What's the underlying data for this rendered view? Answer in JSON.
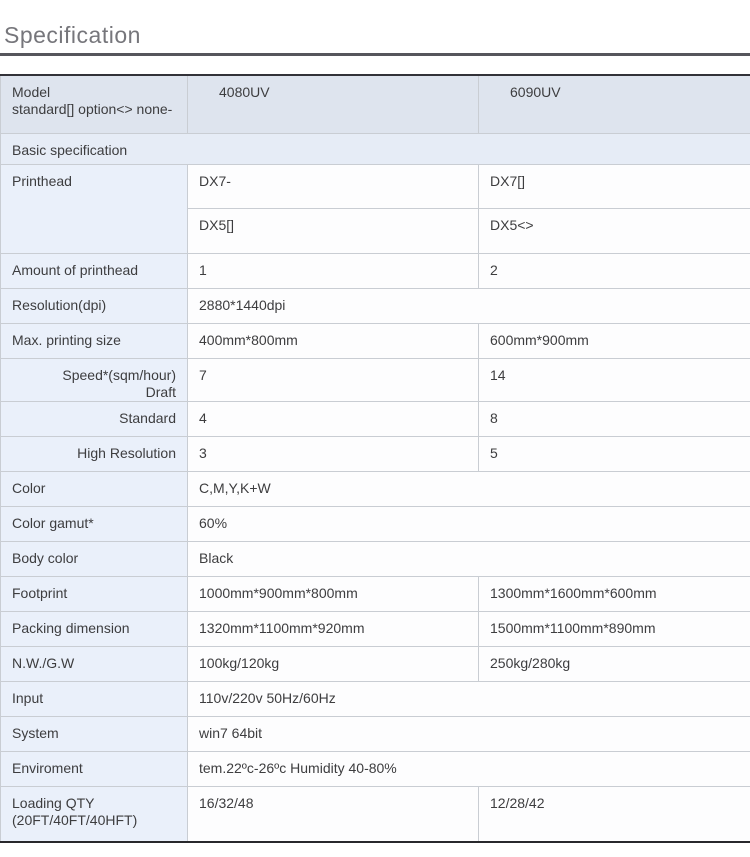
{
  "page": {
    "title": "Specification"
  },
  "table": {
    "header": {
      "label_line1": "Model",
      "label_line2": "standard[] option<> none-",
      "model1": "4080UV",
      "model2": "6090UV"
    },
    "section": {
      "label": "Basic specification"
    },
    "rows": {
      "printhead": {
        "label": "Printhead",
        "dx7_left": "DX7-",
        "dx7_right": "DX7[]",
        "dx5_left": "DX5[]",
        "dx5_right": "DX5<>"
      },
      "amount": {
        "label": "Amount of printhead",
        "v1": "1",
        "v2": "2"
      },
      "resolution": {
        "label": "Resolution(dpi)",
        "value": "2880*1440dpi"
      },
      "max_size": {
        "label": "Max. printing size",
        "v1": "400mm*800mm",
        "v2": "600mm*900mm"
      },
      "speed_draft": {
        "label_line1": "Speed*(sqm/hour)",
        "label_line2": "Draft",
        "v1": "7",
        "v2": "14"
      },
      "standard": {
        "label": "Standard",
        "v1": "4",
        "v2": "8"
      },
      "high_res": {
        "label": "High Resolution",
        "v1": "3",
        "v2": "5"
      },
      "color": {
        "label": "Color",
        "value": "C,M,Y,K+W"
      },
      "gamut": {
        "label": "Color gamut*",
        "value": "60%"
      },
      "body_color": {
        "label": "Body color",
        "value": "Black"
      },
      "footprint": {
        "label": "Footprint",
        "v1": "1000mm*900mm*800mm",
        "v2": "1300mm*1600mm*600mm"
      },
      "packing": {
        "label": "Packing dimension",
        "v1": "1320mm*1100mm*920mm",
        "v2": "1500mm*1100mm*890mm"
      },
      "weight": {
        "label": "N.W./G.W",
        "v1": "100kg/120kg",
        "v2": "250kg/280kg"
      },
      "input": {
        "label": "Input",
        "value": "110v/220v 50Hz/60Hz"
      },
      "system": {
        "label": "System",
        "value": "win7 64bit"
      },
      "environment": {
        "label": "Enviroment",
        "value": "tem.22ºc-26ºc Humidity 40-80%"
      },
      "loading": {
        "label_line1": "Loading QTY",
        "label_line2": "(20FT/40FT/40HFT)",
        "v1": "16/32/48",
        "v2": "12/28/42"
      }
    },
    "colors": {
      "header_bg": "#dee4ee",
      "section_bg": "#e6ecf6",
      "label_bg": "#eaf0fa",
      "border": "#c9cdd3",
      "dark_rule": "#323238",
      "title_text": "#76767b",
      "body_text": "#3d3d3f"
    }
  }
}
